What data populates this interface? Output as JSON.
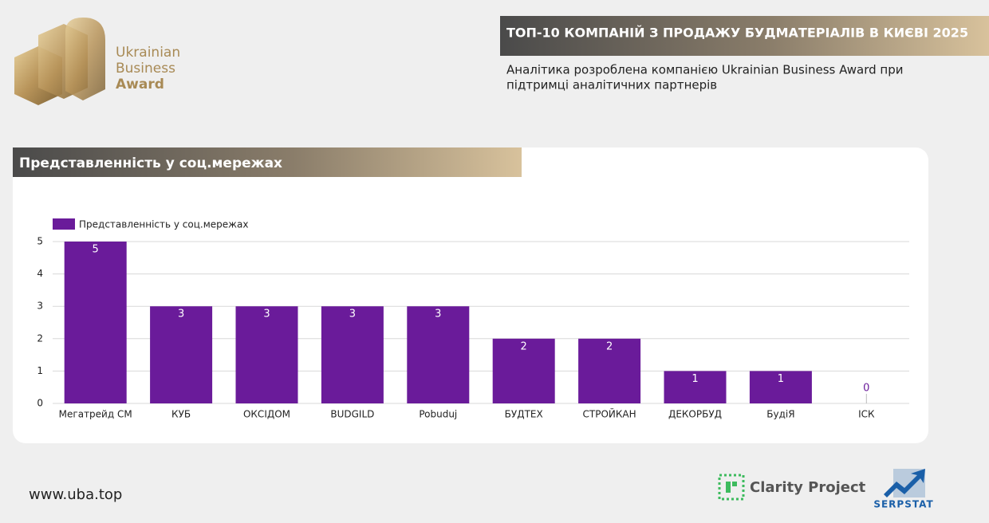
{
  "logo": {
    "lines": [
      "Ukrainian",
      "Business",
      "Award"
    ]
  },
  "header": {
    "title": "ТОП-10 КОМПАНІЙ З ПРОДАЖУ БУДМАТЕРІАЛІВ В КИЄВІ 2025",
    "subtitle": [
      "Аналітика розроблена компанією Ukrainian Business Award при",
      "підтримці аналітичних партнерів"
    ]
  },
  "chart_data": {
    "type": "bar",
    "title": "Представленність у соц.мережах",
    "categories": [
      "Мегатрейд СМ",
      "КУБ",
      "ОКСІДОМ",
      "BUDGILD",
      "Pobuduj",
      "БУДТЕХ",
      "СТРОЙКАН",
      "ДЕКОРБУД",
      "БудіЯ",
      "ІСК"
    ],
    "series": [
      {
        "name": "Представленність у соц.мережах",
        "color": "#6a1b9a",
        "values": [
          5,
          3,
          3,
          3,
          3,
          2,
          2,
          1,
          1,
          0
        ]
      }
    ],
    "ylim": [
      0,
      5
    ],
    "yticks": [
      0,
      1,
      2,
      3,
      4,
      5
    ],
    "grid": true,
    "legend": "top-left"
  },
  "footer": {
    "url": "www.uba.top",
    "partners": [
      "Clarity Project",
      "SERPSTAT"
    ]
  }
}
